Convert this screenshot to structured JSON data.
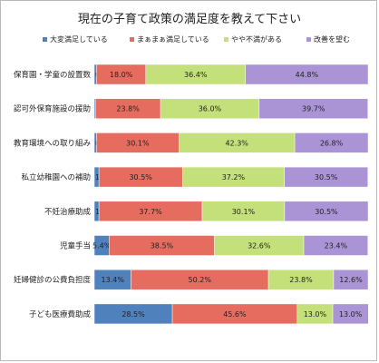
{
  "chart_data": {
    "type": "bar",
    "orientation": "horizontal",
    "stacked": true,
    "percent_stacked": true,
    "title": "現在の子育て政策の満足度を教えて下さい",
    "legend_position": "top",
    "grid": false,
    "xlim": [
      0,
      100
    ],
    "categories": [
      "保育園・学童の設置数",
      "認可外保育施設の援助",
      "教育環境への取り組み",
      "私立幼稚園への補助",
      "不妊治療助成",
      "児童手当",
      "妊婦健診の公費負担度",
      "子ども医療費助成"
    ],
    "series": [
      {
        "name": "大変満足している",
        "color": "#4f81bd",
        "values": [
          0.8,
          0.4,
          0.8,
          1.7,
          1.7,
          5.4,
          13.4,
          28.5
        ]
      },
      {
        "name": "まぁまぁ満足している",
        "color": "#e66c5f",
        "values": [
          18.0,
          23.8,
          30.1,
          30.5,
          37.7,
          38.5,
          50.2,
          45.6
        ]
      },
      {
        "name": "やや不満がある",
        "color": "#c4e07a",
        "values": [
          36.4,
          36.0,
          42.3,
          37.2,
          30.1,
          32.6,
          23.8,
          13.0
        ]
      },
      {
        "name": "改善を望む",
        "color": "#ab94d6",
        "values": [
          44.8,
          39.7,
          26.8,
          30.5,
          30.5,
          23.4,
          12.6,
          13.0
        ]
      }
    ]
  }
}
